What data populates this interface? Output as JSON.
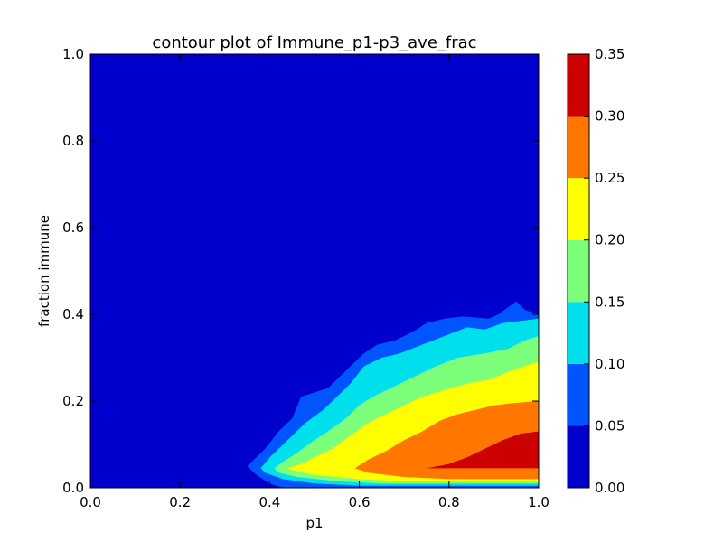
{
  "chart_data": {
    "type": "contour",
    "title": "contour plot of Immune_p1-p3_ave_frac",
    "xlabel": "p1",
    "ylabel": "fraction immune",
    "xlim": [
      0.0,
      1.0
    ],
    "ylim": [
      0.0,
      1.0
    ],
    "x_ticks": [
      "0.0",
      "0.2",
      "0.4",
      "0.6",
      "0.8",
      "1.0"
    ],
    "y_ticks": [
      "0.0",
      "0.2",
      "0.4",
      "0.6",
      "0.8",
      "1.0"
    ],
    "colorbar": {
      "levels": [
        0.0,
        0.05,
        0.1,
        0.15,
        0.2,
        0.25,
        0.3,
        0.35
      ],
      "tick_labels": [
        "0.00",
        "0.05",
        "0.10",
        "0.15",
        "0.20",
        "0.25",
        "0.30",
        "0.35"
      ],
      "colors": [
        "#0000cd",
        "#0055ff",
        "#00e0ec",
        "#7cff7a",
        "#ffff00",
        "#ff7700",
        "#cd0000"
      ]
    },
    "contour_bands": [
      {
        "level_min": 0.05,
        "boundary": [
          [
            0.35,
            0.05
          ],
          [
            0.37,
            0.07
          ],
          [
            0.39,
            0.09
          ],
          [
            0.42,
            0.13
          ],
          [
            0.45,
            0.16
          ],
          [
            0.47,
            0.21
          ],
          [
            0.53,
            0.23
          ],
          [
            0.57,
            0.27
          ],
          [
            0.61,
            0.31
          ],
          [
            0.64,
            0.33
          ],
          [
            0.68,
            0.34
          ],
          [
            0.72,
            0.36
          ],
          [
            0.75,
            0.38
          ],
          [
            0.79,
            0.39
          ],
          [
            0.83,
            0.395
          ],
          [
            0.89,
            0.39
          ],
          [
            0.91,
            0.4
          ],
          [
            0.95,
            0.43
          ],
          [
            0.97,
            0.41
          ],
          [
            1.0,
            0.4
          ],
          [
            1.0,
            0.0
          ],
          [
            0.43,
            0.0
          ],
          [
            0.4,
            0.01
          ],
          [
            0.37,
            0.03
          ]
        ]
      },
      {
        "level_min": 0.1,
        "boundary": [
          [
            0.38,
            0.045
          ],
          [
            0.4,
            0.07
          ],
          [
            0.42,
            0.09
          ],
          [
            0.45,
            0.12
          ],
          [
            0.48,
            0.15
          ],
          [
            0.52,
            0.18
          ],
          [
            0.55,
            0.21
          ],
          [
            0.58,
            0.24
          ],
          [
            0.61,
            0.28
          ],
          [
            0.65,
            0.3
          ],
          [
            0.69,
            0.31
          ],
          [
            0.74,
            0.33
          ],
          [
            0.79,
            0.35
          ],
          [
            0.84,
            0.37
          ],
          [
            0.88,
            0.365
          ],
          [
            0.92,
            0.38
          ],
          [
            0.96,
            0.385
          ],
          [
            1.0,
            0.39
          ],
          [
            1.0,
            0.005
          ],
          [
            0.6,
            0.005
          ],
          [
            0.5,
            0.01
          ],
          [
            0.43,
            0.02
          ],
          [
            0.39,
            0.035
          ]
        ]
      },
      {
        "level_min": 0.15,
        "boundary": [
          [
            0.41,
            0.045
          ],
          [
            0.43,
            0.06
          ],
          [
            0.46,
            0.08
          ],
          [
            0.5,
            0.11
          ],
          [
            0.53,
            0.13
          ],
          [
            0.57,
            0.16
          ],
          [
            0.6,
            0.19
          ],
          [
            0.63,
            0.21
          ],
          [
            0.67,
            0.23
          ],
          [
            0.72,
            0.255
          ],
          [
            0.77,
            0.28
          ],
          [
            0.82,
            0.3
          ],
          [
            0.88,
            0.31
          ],
          [
            0.93,
            0.32
          ],
          [
            0.97,
            0.34
          ],
          [
            1.0,
            0.35
          ],
          [
            1.0,
            0.01
          ],
          [
            0.65,
            0.01
          ],
          [
            0.55,
            0.015
          ],
          [
            0.46,
            0.025
          ],
          [
            0.42,
            0.035
          ]
        ]
      },
      {
        "level_min": 0.2,
        "boundary": [
          [
            0.44,
            0.045
          ],
          [
            0.47,
            0.055
          ],
          [
            0.5,
            0.07
          ],
          [
            0.54,
            0.09
          ],
          [
            0.58,
            0.12
          ],
          [
            0.62,
            0.15
          ],
          [
            0.66,
            0.17
          ],
          [
            0.7,
            0.19
          ],
          [
            0.74,
            0.21
          ],
          [
            0.79,
            0.225
          ],
          [
            0.84,
            0.24
          ],
          [
            0.89,
            0.25
          ],
          [
            0.94,
            0.27
          ],
          [
            0.98,
            0.285
          ],
          [
            1.0,
            0.29
          ],
          [
            1.0,
            0.015
          ],
          [
            0.7,
            0.015
          ],
          [
            0.6,
            0.02
          ],
          [
            0.5,
            0.03
          ],
          [
            0.46,
            0.038
          ]
        ]
      },
      {
        "level_min": 0.25,
        "boundary": [
          [
            0.59,
            0.045
          ],
          [
            0.62,
            0.065
          ],
          [
            0.66,
            0.085
          ],
          [
            0.7,
            0.11
          ],
          [
            0.74,
            0.13
          ],
          [
            0.78,
            0.155
          ],
          [
            0.82,
            0.17
          ],
          [
            0.86,
            0.18
          ],
          [
            0.9,
            0.19
          ],
          [
            0.94,
            0.195
          ],
          [
            1.0,
            0.2
          ],
          [
            1.0,
            0.02
          ],
          [
            0.8,
            0.02
          ],
          [
            0.7,
            0.025
          ],
          [
            0.62,
            0.035
          ]
        ]
      },
      {
        "level_min": 0.3,
        "boundary": [
          [
            0.75,
            0.045
          ],
          [
            0.8,
            0.055
          ],
          [
            0.84,
            0.07
          ],
          [
            0.88,
            0.09
          ],
          [
            0.92,
            0.11
          ],
          [
            0.96,
            0.125
          ],
          [
            1.0,
            0.13
          ],
          [
            1.0,
            0.045
          ]
        ]
      }
    ]
  }
}
